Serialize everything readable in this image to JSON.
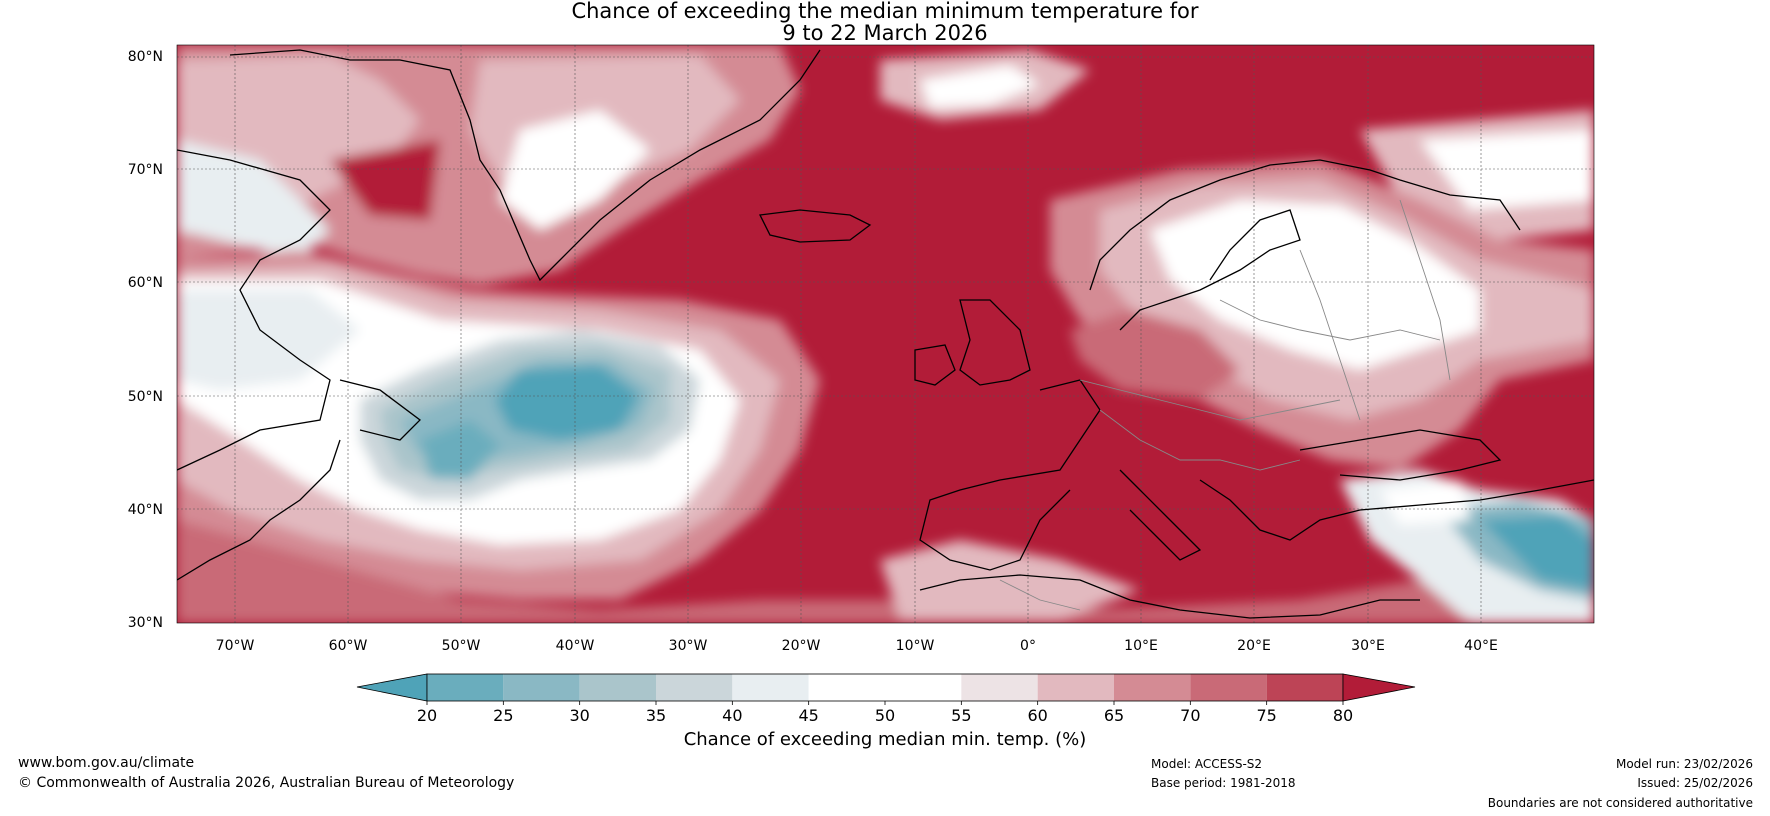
{
  "title": {
    "line1": "Chance of exceeding the median minimum temperature for",
    "line2": "9 to 22 March 2026"
  },
  "map": {
    "region": "North Atlantic and Europe",
    "lat_labels": [
      "80°N",
      "70°N",
      "60°N",
      "50°N",
      "40°N",
      "30°N"
    ],
    "lon_labels": [
      "70°W",
      "60°W",
      "50°W",
      "40°W",
      "30°W",
      "20°W",
      "10°W",
      "0°",
      "10°E",
      "20°E",
      "30°E",
      "40°E"
    ]
  },
  "colorbar": {
    "label": "Chance of exceeding median min. temp. (%)",
    "ticks": [
      "20",
      "25",
      "30",
      "35",
      "40",
      "45",
      "50",
      "55",
      "60",
      "65",
      "70",
      "75",
      "80"
    ],
    "colors": [
      "#4fa3b8",
      "#6aadbd",
      "#8ab8c4",
      "#aac5cb",
      "#cbd6da",
      "#e8eef1",
      "#ffffff",
      "#ffffff",
      "#ede3e5",
      "#e2b9bf",
      "#d48b94",
      "#c96a77",
      "#bd4456",
      "#b21c38"
    ]
  },
  "footer": {
    "website": "www.bom.gov.au/climate",
    "copyright": "© Commonwealth of Australia 2026, Australian Bureau of Meteorology",
    "model": "Model: ACCESS-S2",
    "base_period": "Base period: 1981-2018",
    "model_run": "Model run: 23/02/2026",
    "issued": "Issued: 25/02/2026",
    "disclaimer": "Boundaries are not considered authoritative"
  }
}
